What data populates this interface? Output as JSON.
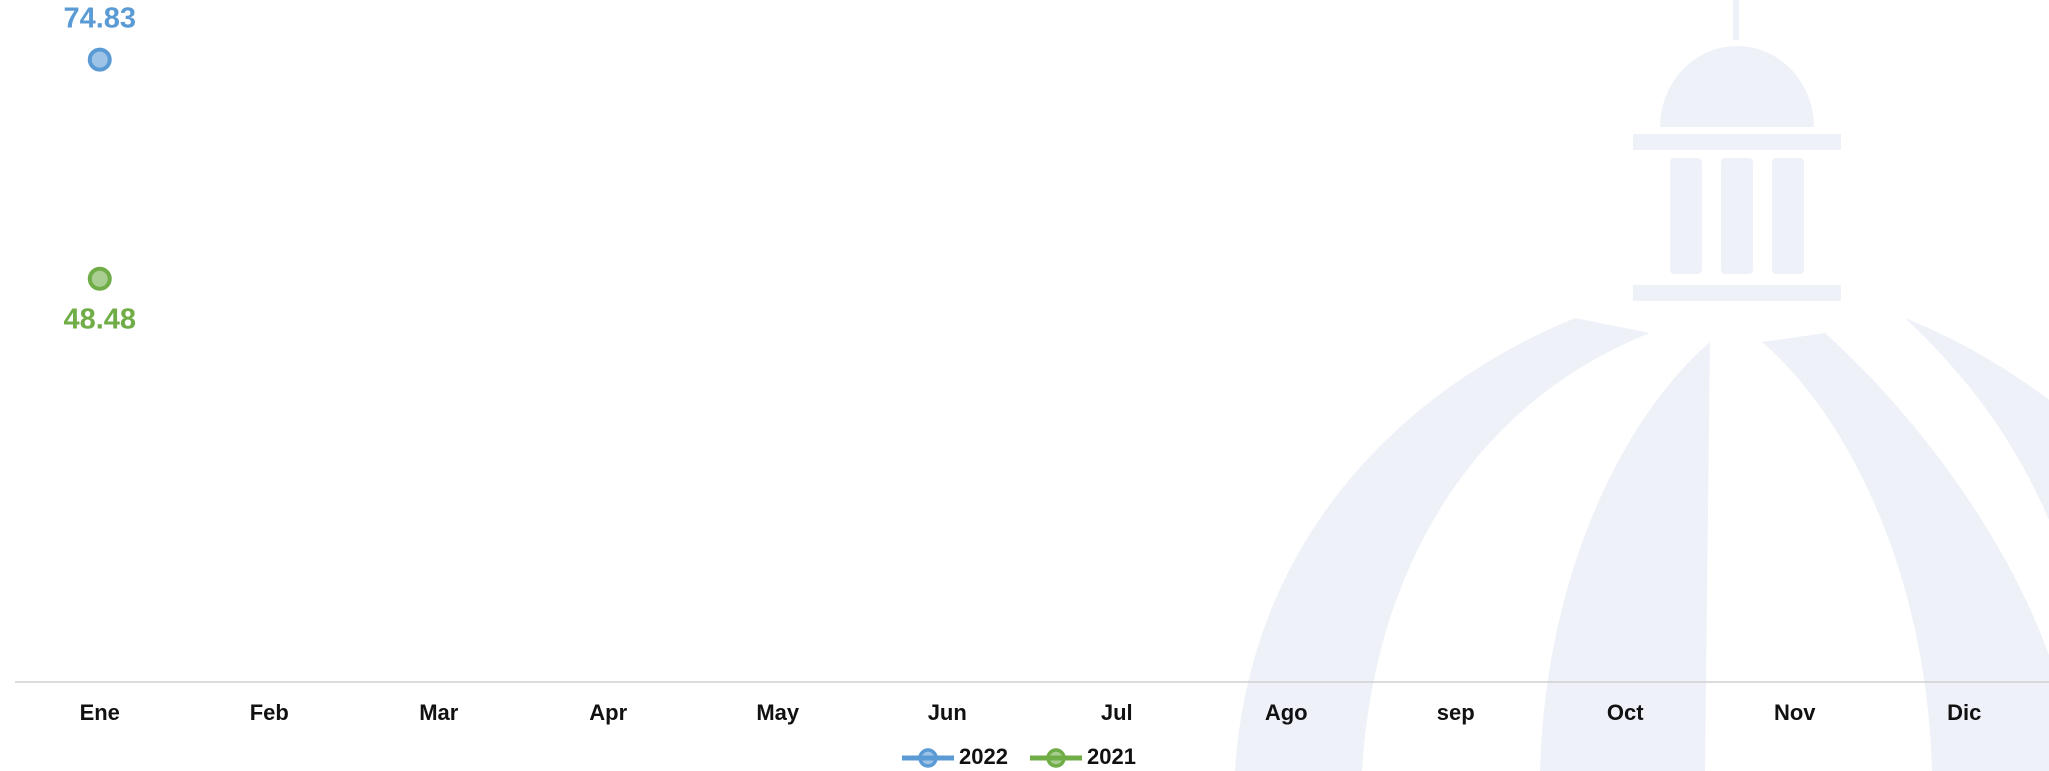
{
  "chart_data": {
    "type": "line",
    "categories": [
      "Ene",
      "Feb",
      "Mar",
      "Apr",
      "May",
      "Jun",
      "Jul",
      "Ago",
      "sep",
      "Oct",
      "Nov",
      "Dic"
    ],
    "series": [
      {
        "name": "2022",
        "color": "#5b9bd5",
        "values": [
          74.83,
          null,
          null,
          null,
          null,
          null,
          null,
          null,
          null,
          null,
          null,
          null
        ]
      },
      {
        "name": "2021",
        "color": "#70ad47",
        "values": [
          48.48,
          null,
          null,
          null,
          null,
          null,
          null,
          null,
          null,
          null,
          null,
          null
        ]
      }
    ],
    "ylim": [
      0,
      82
    ],
    "grid": false,
    "legend": "bottom"
  }
}
